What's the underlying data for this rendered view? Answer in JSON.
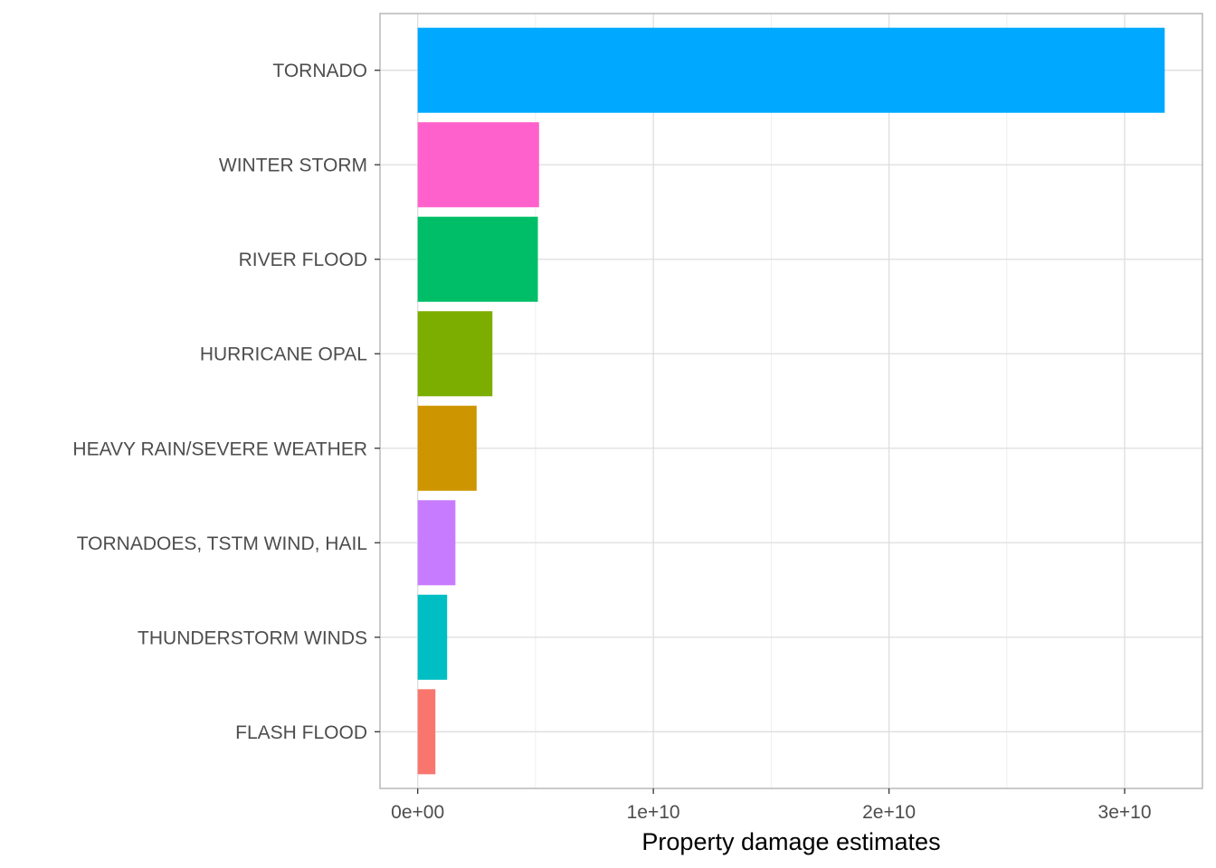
{
  "chart_data": {
    "type": "bar",
    "orientation": "horizontal",
    "xlabel": "Property damage estimates",
    "ylabel": "",
    "xlim": [
      -1600000000.0,
      33300000000.0
    ],
    "x_ticks": [
      0,
      10000000000,
      20000000000,
      30000000000
    ],
    "x_tick_labels": [
      "0e+00",
      "1e+10",
      "2e+10",
      "3e+10"
    ],
    "grid": true,
    "legend": "none",
    "categories": [
      "FLASH FLOOD",
      "THUNDERSTORM WINDS",
      "TORNADOES, TSTM WIND, HAIL",
      "HEAVY RAIN/SEVERE WEATHER",
      "HURRICANE OPAL",
      "RIVER FLOOD",
      "WINTER STORM",
      "TORNADO"
    ],
    "values": [
      750000000,
      1250000000,
      1600000000,
      2500000000,
      3170000000,
      5100000000,
      5150000000,
      31700000000
    ],
    "colors": [
      "#F8766D",
      "#00BFC4",
      "#C77CFF",
      "#CD9600",
      "#7CAE00",
      "#00BE67",
      "#FF61CC",
      "#00A9FF"
    ]
  }
}
